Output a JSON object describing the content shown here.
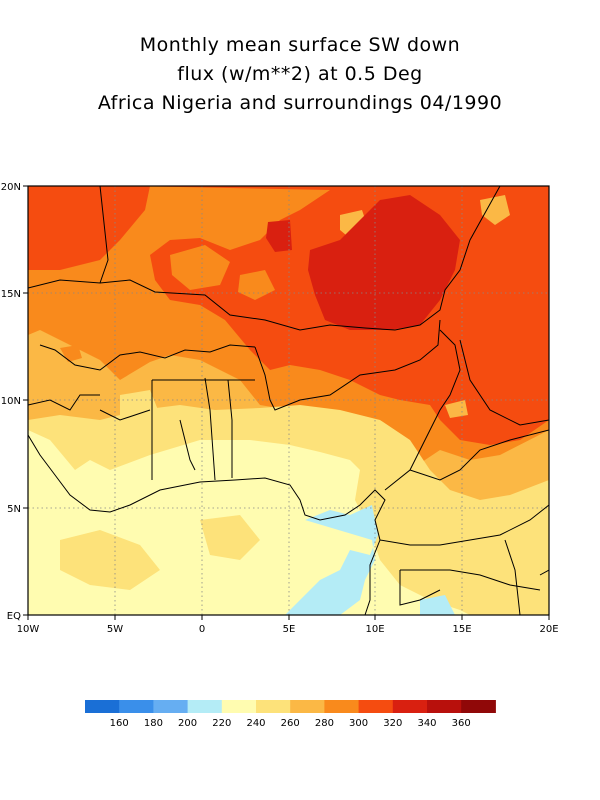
{
  "title_lines": [
    "Monthly mean surface SW down",
    "flux (w/m**2) at 0.5 Deg",
    "Africa Nigeria and surroundings 04/1990"
  ],
  "map": {
    "lon_range": [
      -10,
      20
    ],
    "lat_range": [
      0,
      20
    ],
    "x_ticks": [
      "10W",
      "5W",
      "0",
      "5E",
      "10E",
      "15E",
      "20E"
    ],
    "y_ticks": [
      "EQ",
      "5N",
      "10N",
      "15N",
      "20N"
    ],
    "grid": "dotted"
  },
  "legend": {
    "colors": [
      "#1a6fd6",
      "#3a8fea",
      "#66aef2",
      "#b4ecf6",
      "#fffcb0",
      "#fde27a",
      "#fbb845",
      "#f98a1c",
      "#f54c10",
      "#d92010",
      "#b8100c",
      "#900808"
    ],
    "labels": [
      "160",
      "180",
      "200",
      "220",
      "240",
      "260",
      "280",
      "300",
      "320",
      "340",
      "360"
    ]
  }
}
